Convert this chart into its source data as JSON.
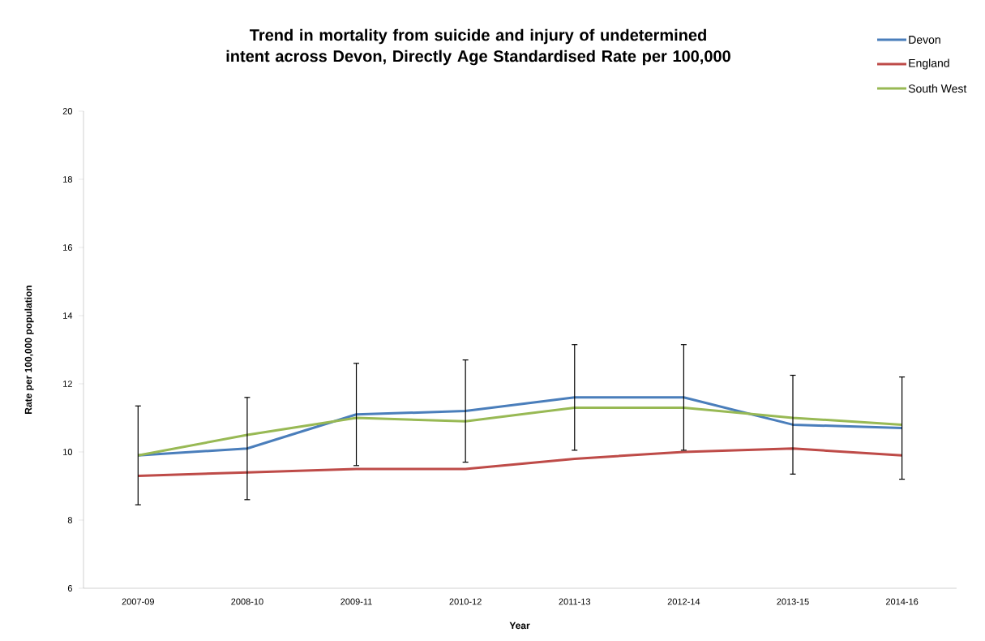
{
  "chart_data": {
    "type": "line",
    "title": "Trend in mortality from suicide and injury of undetermined intent across Devon, Directly Age Standardised Rate per 100,000",
    "xlabel": "Year",
    "ylabel": "Rate per 100,000 population",
    "categories": [
      "2007-09",
      "2008-10",
      "2009-11",
      "2010-12",
      "2011-13",
      "2012-14",
      "2013-15",
      "2014-16"
    ],
    "series": [
      {
        "name": "Devon",
        "color": "#4a7ebb",
        "values": [
          9.9,
          10.1,
          11.1,
          11.2,
          11.6,
          11.6,
          10.8,
          10.7
        ],
        "errors": [
          [
            8.45,
            11.35
          ],
          [
            8.6,
            11.6
          ],
          [
            9.6,
            12.6
          ],
          [
            9.7,
            12.7
          ],
          [
            10.05,
            13.15
          ],
          [
            10.05,
            13.15
          ],
          [
            9.35,
            12.25
          ],
          [
            9.2,
            12.2
          ]
        ]
      },
      {
        "name": "England",
        "color": "#be4b48",
        "values": [
          9.3,
          9.4,
          9.5,
          9.5,
          9.8,
          10.0,
          10.1,
          9.9
        ]
      },
      {
        "name": "South West",
        "color": "#98b954",
        "values": [
          9.9,
          10.5,
          11.0,
          10.9,
          11.3,
          11.3,
          11.0,
          10.8
        ]
      }
    ],
    "ylim": [
      6,
      20
    ],
    "yticks": [
      6,
      8,
      10,
      12,
      14,
      16,
      18,
      20
    ],
    "legend": "top right",
    "grid": false,
    "marker": "none",
    "line_style": "solid"
  }
}
